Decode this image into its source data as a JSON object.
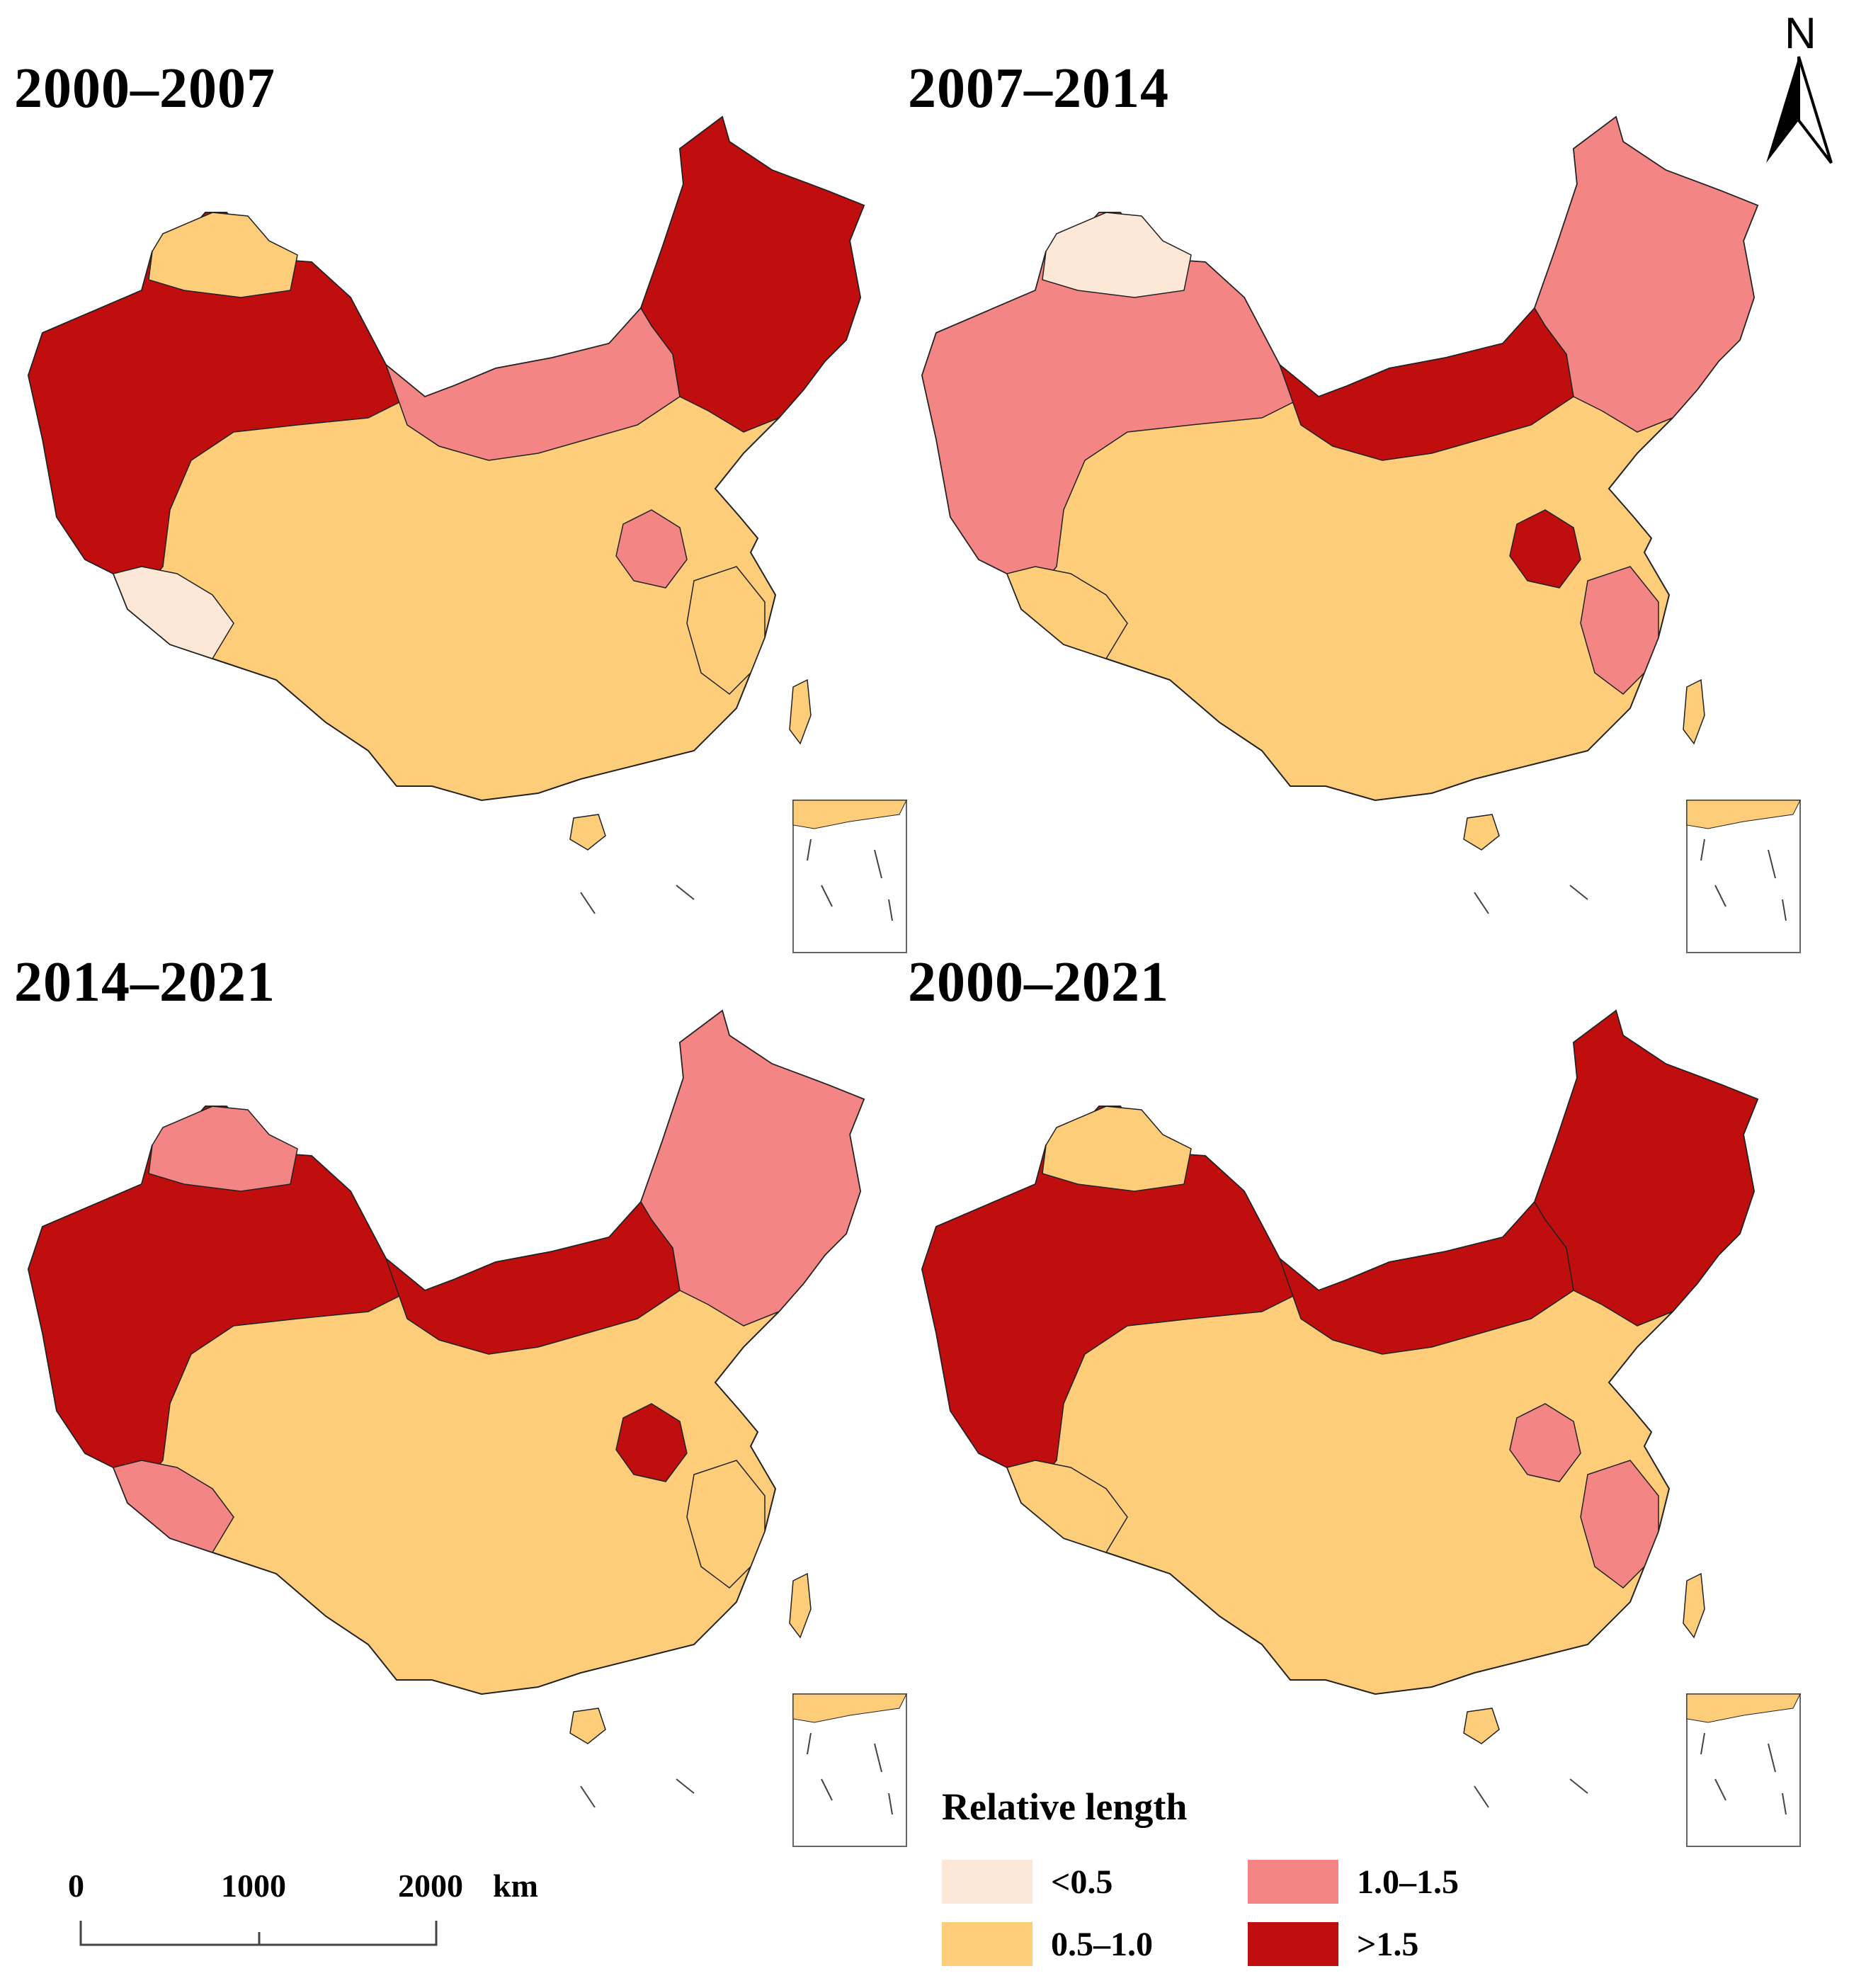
{
  "panels": [
    {
      "title": "2000–2007",
      "regions": {
        "northeast": ">1.5",
        "west": ">1.5",
        "far_north": "0.5–1.0",
        "north_central": "1.0–1.5",
        "central": "0.5–1.0",
        "southwest_tip": "<0.5",
        "hotspot": "1.0–1.5",
        "southeast": "0.5–1.0"
      }
    },
    {
      "title": "2007–2014",
      "regions": {
        "northeast": "1.0–1.5",
        "west": "1.0–1.5",
        "far_north": "<0.5",
        "north_central": ">1.5",
        "central": "0.5–1.0",
        "southwest_tip": "0.5–1.0",
        "hotspot": ">1.5",
        "southeast": "1.0–1.5"
      }
    },
    {
      "title": "2014–2021",
      "regions": {
        "northeast": "1.0–1.5",
        "west": ">1.5",
        "far_north": "1.0–1.5",
        "north_central": ">1.5",
        "central": "0.5–1.0",
        "southwest_tip": "1.0–1.5",
        "hotspot": ">1.5",
        "southeast": "0.5–1.0"
      }
    },
    {
      "title": "2000–2021",
      "regions": {
        "northeast": ">1.5",
        "west": ">1.5",
        "far_north": "0.5–1.0",
        "north_central": ">1.5",
        "central": "0.5–1.0",
        "southwest_tip": "0.5–1.0",
        "hotspot": "1.0–1.5",
        "southeast": "1.0–1.5"
      }
    }
  ],
  "north_arrow": {
    "label": "N",
    "icon": "north-arrow-icon"
  },
  "legend": {
    "title": "Relative length",
    "items": [
      {
        "label": "<0.5",
        "color": "#fde8d8"
      },
      {
        "label": "0.5–1.0",
        "color": "#fdcd7a"
      },
      {
        "label": "1.0–1.5",
        "color": "#f48585"
      },
      {
        "label": ">1.5",
        "color": "#c00d0d"
      }
    ]
  },
  "scale_bar": {
    "labels": [
      "0",
      "1000",
      "2000",
      "km"
    ]
  }
}
